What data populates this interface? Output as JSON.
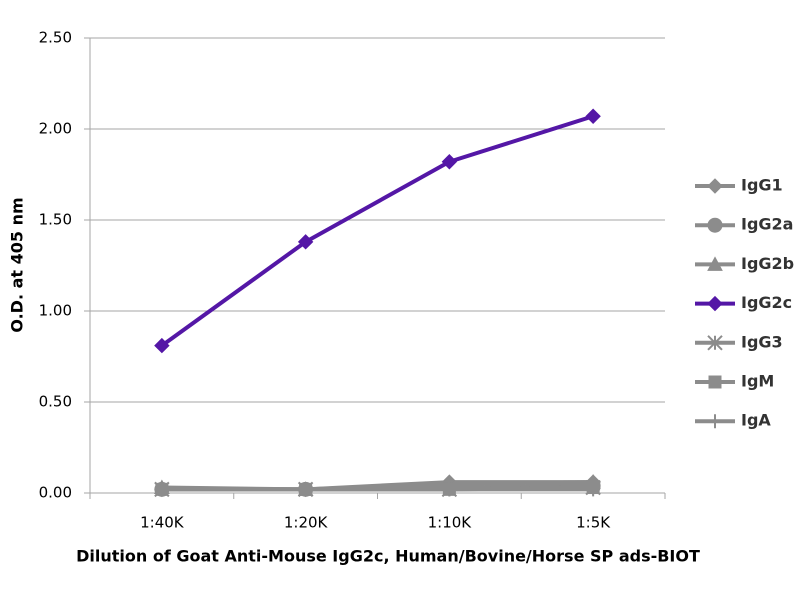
{
  "chart_data": {
    "type": "line",
    "x_label": "Dilution of Goat Anti-Mouse IgG2c, Human/Bovine/Horse SP ads-BIOT",
    "y_label": "O.D. at 405 nm",
    "categories": [
      "1:40K",
      "1:20K",
      "1:10K",
      "1:5K"
    ],
    "ylim": [
      0,
      2.5
    ],
    "yticks": [
      {
        "value": 0,
        "label": "0.00"
      },
      {
        "value": 0.5,
        "label": "0.50"
      },
      {
        "value": 1,
        "label": "1.00"
      },
      {
        "value": 1.5,
        "label": "1.50"
      },
      {
        "value": 2,
        "label": "2.00"
      },
      {
        "value": 2.5,
        "label": "2.50"
      }
    ],
    "grid": true,
    "legend": "right",
    "series": [
      {
        "name": "IgG1",
        "color": "#8c8c8c",
        "marker": "diamond",
        "values": [
          0.02,
          0.02,
          0.06,
          0.06
        ]
      },
      {
        "name": "IgG2a",
        "color": "#8c8c8c",
        "marker": "circle",
        "values": [
          0.02,
          0.02,
          0.03,
          0.04
        ]
      },
      {
        "name": "IgG2b",
        "color": "#8c8c8c",
        "marker": "triangle",
        "values": [
          0.03,
          0.02,
          0.05,
          0.06
        ]
      },
      {
        "name": "IgG2c",
        "color": "#5417a6",
        "marker": "diamond",
        "values": [
          0.81,
          1.38,
          1.82,
          2.07
        ]
      },
      {
        "name": "IgG3",
        "color": "#8c8c8c",
        "marker": "star",
        "values": [
          0.02,
          0.02,
          0.02,
          0.03
        ]
      },
      {
        "name": "IgM",
        "color": "#8c8c8c",
        "marker": "square",
        "values": [
          0.02,
          0.02,
          0.02,
          0.03
        ]
      },
      {
        "name": "IgA",
        "color": "#8c8c8c",
        "marker": "plus",
        "values": [
          0.02,
          0.02,
          0.02,
          0.02
        ]
      }
    ]
  }
}
